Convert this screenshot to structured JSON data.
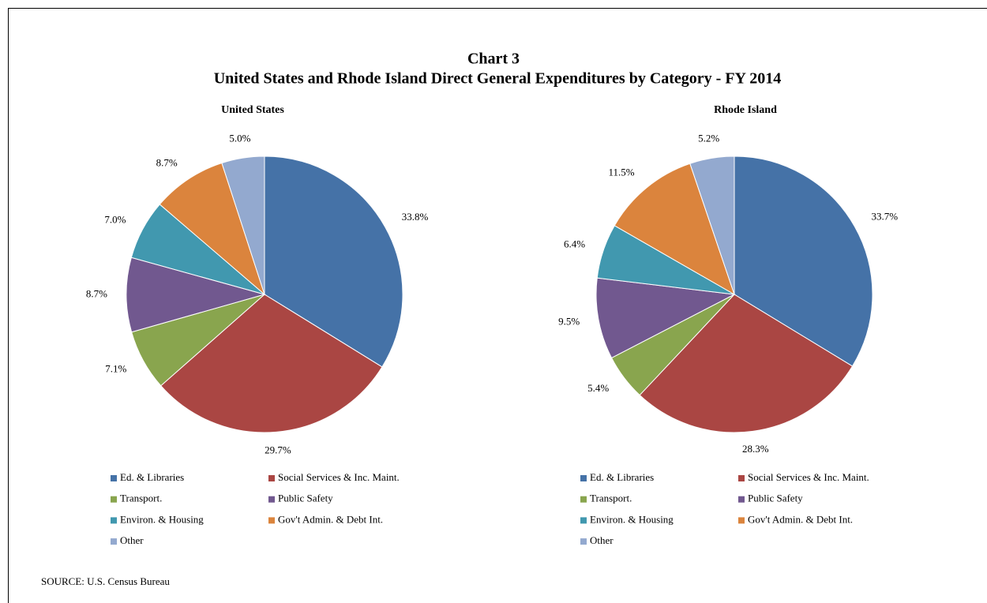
{
  "title": "Chart 3",
  "subtitle": "United States and Rhode Island Direct General Expenditures by Category - FY 2014",
  "source": "SOURCE: U.S. Census Bureau",
  "chart_data": [
    {
      "type": "pie",
      "title": "United States",
      "categories": [
        "Ed. & Libraries",
        "Social Services & Inc. Maint.",
        "Transport.",
        "Public Safety",
        "Environ. & Housing",
        "Gov't Admin. & Debt Int.",
        "Other"
      ],
      "values": [
        33.8,
        29.7,
        7.1,
        8.7,
        7.0,
        8.7,
        5.0
      ],
      "value_labels": [
        "33.8%",
        "29.7%",
        "7.1%",
        "8.7%",
        "7.0%",
        "8.7%",
        "5.0%"
      ],
      "colors": [
        "#4572a7",
        "#aa4643",
        "#89a54e",
        "#71588f",
        "#4198af",
        "#db843d",
        "#93a9cf"
      ]
    },
    {
      "type": "pie",
      "title": "Rhode Island",
      "categories": [
        "Ed. & Libraries",
        "Social Services & Inc. Maint.",
        "Transport.",
        "Public Safety",
        "Environ. & Housing",
        "Gov't Admin. & Debt Int.",
        "Other"
      ],
      "values": [
        33.7,
        28.3,
        5.4,
        9.5,
        6.4,
        11.5,
        5.2
      ],
      "value_labels": [
        "33.7%",
        "28.3%",
        "5.4%",
        "9.5%",
        "6.4%",
        "11.5%",
        "5.2%"
      ],
      "colors": [
        "#4572a7",
        "#aa4643",
        "#89a54e",
        "#71588f",
        "#4198af",
        "#db843d",
        "#93a9cf"
      ]
    }
  ]
}
